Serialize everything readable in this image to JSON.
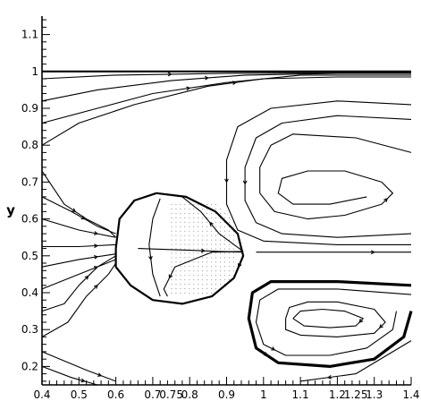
{
  "chart_data": {
    "type": "line",
    "title": "",
    "xlabel": "",
    "ylabel": "y",
    "xlim": [
      0.4,
      1.4
    ],
    "ylim": [
      0.15,
      1.15
    ],
    "x_ticks": [
      "0.4",
      "0.5",
      "0.6",
      "0.7",
      "0.75",
      "0.8",
      "0.9",
      "1",
      "1.1",
      "1.2",
      "1.25",
      "1.3",
      "1.4"
    ],
    "y_ticks": [
      "0.2",
      "0.3",
      "0.4",
      "0.5",
      "0.6",
      "0.7",
      "0.8",
      "0.9",
      "1",
      "1.1"
    ],
    "grid": false,
    "legend": "none",
    "series": [
      {
        "values": [
          [
            0.4,
            1.0
          ],
          [
            1.4,
            1.0
          ]
        ]
      },
      {
        "values": [
          [
            0.4,
            0.8
          ],
          [
            0.5,
            0.86
          ],
          [
            0.65,
            0.91
          ],
          [
            0.85,
            0.96
          ],
          [
            1.0,
            0.98
          ],
          [
            1.2,
            0.985
          ],
          [
            1.4,
            0.985
          ]
        ]
      },
      {
        "values": [
          [
            0.4,
            0.86
          ],
          [
            0.55,
            0.9
          ],
          [
            0.7,
            0.94
          ],
          [
            0.9,
            0.97
          ],
          [
            1.1,
            0.99
          ],
          [
            1.4,
            0.99
          ]
        ]
      },
      {
        "values": [
          [
            0.4,
            0.92
          ],
          [
            0.55,
            0.95
          ],
          [
            0.75,
            0.975
          ],
          [
            0.95,
            0.99
          ],
          [
            1.2,
            0.995
          ],
          [
            1.4,
            0.995
          ]
        ]
      },
      {
        "values": [
          [
            0.4,
            0.98
          ],
          [
            0.6,
            0.99
          ],
          [
            0.9,
            0.995
          ],
          [
            1.4,
            0.997
          ]
        ]
      },
      {
        "values": [
          [
            0.4,
            0.73
          ],
          [
            0.42,
            0.7
          ],
          [
            0.46,
            0.64
          ],
          [
            0.52,
            0.6
          ],
          [
            0.58,
            0.57
          ],
          [
            0.6,
            0.55
          ]
        ]
      },
      {
        "values": [
          [
            0.4,
            0.66
          ],
          [
            0.48,
            0.62
          ],
          [
            0.55,
            0.58
          ],
          [
            0.6,
            0.56
          ]
        ]
      },
      {
        "values": [
          [
            0.4,
            0.6
          ],
          [
            0.5,
            0.57
          ],
          [
            0.6,
            0.55
          ]
        ]
      },
      {
        "values": [
          [
            0.4,
            0.525
          ],
          [
            0.5,
            0.525
          ],
          [
            0.6,
            0.53
          ]
        ]
      },
      {
        "values": [
          [
            0.4,
            0.47
          ],
          [
            0.5,
            0.49
          ],
          [
            0.6,
            0.505
          ]
        ]
      },
      {
        "values": [
          [
            0.4,
            0.41
          ],
          [
            0.5,
            0.45
          ],
          [
            0.6,
            0.49
          ]
        ]
      },
      {
        "values": [
          [
            0.4,
            0.35
          ],
          [
            0.46,
            0.37
          ],
          [
            0.5,
            0.42
          ],
          [
            0.55,
            0.47
          ],
          [
            0.6,
            0.5
          ]
        ]
      },
      {
        "values": [
          [
            0.4,
            0.28
          ],
          [
            0.47,
            0.32
          ],
          [
            0.52,
            0.39
          ],
          [
            0.58,
            0.45
          ],
          [
            0.6,
            0.48
          ]
        ]
      },
      {
        "values": [
          [
            0.4,
            0.24
          ],
          [
            0.52,
            0.19
          ],
          [
            0.6,
            0.16
          ]
        ]
      },
      {
        "values": [
          [
            0.4,
            0.2
          ],
          [
            0.48,
            0.17
          ],
          [
            0.55,
            0.15
          ]
        ]
      },
      {
        "values": [
          [
            0.6,
            0.52
          ],
          [
            0.61,
            0.6
          ],
          [
            0.65,
            0.65
          ],
          [
            0.71,
            0.67
          ],
          [
            0.79,
            0.66
          ],
          [
            0.87,
            0.62
          ],
          [
            0.93,
            0.56
          ],
          [
            0.945,
            0.5
          ],
          [
            0.92,
            0.44
          ],
          [
            0.86,
            0.39
          ],
          [
            0.78,
            0.37
          ],
          [
            0.7,
            0.38
          ],
          [
            0.64,
            0.42
          ],
          [
            0.6,
            0.47
          ],
          [
            0.6,
            0.52
          ]
        ]
      },
      {
        "values": [
          [
            0.72,
            0.655
          ],
          [
            0.7,
            0.6
          ],
          [
            0.69,
            0.53
          ],
          [
            0.7,
            0.45
          ],
          [
            0.72,
            0.39
          ]
        ]
      },
      {
        "values": [
          [
            0.66,
            0.52
          ],
          [
            0.72,
            0.518
          ],
          [
            0.8,
            0.515
          ],
          [
            0.88,
            0.512
          ],
          [
            0.945,
            0.51
          ]
        ]
      },
      {
        "values": [
          [
            0.945,
            0.512
          ],
          [
            0.86,
            0.51
          ],
          [
            0.76,
            0.47
          ],
          [
            0.73,
            0.41
          ],
          [
            0.74,
            0.39
          ]
        ]
      },
      {
        "values": [
          [
            0.945,
            0.512
          ],
          [
            0.88,
            0.56
          ],
          [
            0.83,
            0.62
          ],
          [
            0.78,
            0.66
          ]
        ]
      },
      {
        "values": [
          [
            1.4,
            0.78
          ],
          [
            1.25,
            0.82
          ],
          [
            1.08,
            0.83
          ],
          [
            1.02,
            0.8
          ],
          [
            0.99,
            0.74
          ],
          [
            0.99,
            0.67
          ],
          [
            1.03,
            0.62
          ],
          [
            1.12,
            0.6
          ],
          [
            1.22,
            0.61
          ],
          [
            1.32,
            0.64
          ],
          [
            1.35,
            0.67
          ],
          [
            1.32,
            0.7
          ],
          [
            1.22,
            0.73
          ],
          [
            1.12,
            0.73
          ],
          [
            1.05,
            0.71
          ],
          [
            1.04,
            0.67
          ],
          [
            1.08,
            0.64
          ],
          [
            1.18,
            0.64
          ],
          [
            1.28,
            0.66
          ]
        ]
      },
      {
        "values": [
          [
            1.4,
            0.87
          ],
          [
            1.2,
            0.88
          ],
          [
            1.05,
            0.86
          ],
          [
            0.98,
            0.82
          ],
          [
            0.95,
            0.74
          ],
          [
            0.95,
            0.65
          ],
          [
            0.98,
            0.59
          ],
          [
            1.05,
            0.56
          ],
          [
            1.2,
            0.55
          ],
          [
            1.4,
            0.56
          ]
        ]
      },
      {
        "values": [
          [
            1.4,
            0.91
          ],
          [
            1.2,
            0.92
          ],
          [
            1.02,
            0.9
          ],
          [
            0.93,
            0.85
          ],
          [
            0.9,
            0.76
          ],
          [
            0.9,
            0.64
          ],
          [
            0.93,
            0.57
          ],
          [
            1.0,
            0.54
          ],
          [
            1.2,
            0.53
          ],
          [
            1.4,
            0.53
          ]
        ]
      },
      {
        "values": [
          [
            0.98,
            0.51
          ],
          [
            1.2,
            0.51
          ],
          [
            1.4,
            0.51
          ]
        ]
      },
      {
        "values": [
          [
            1.4,
            0.42
          ],
          [
            1.2,
            0.43
          ],
          [
            1.02,
            0.43
          ],
          [
            0.97,
            0.4
          ],
          [
            0.96,
            0.33
          ],
          [
            0.98,
            0.25
          ],
          [
            1.04,
            0.21
          ],
          [
            1.18,
            0.2
          ],
          [
            1.3,
            0.22
          ],
          [
            1.38,
            0.28
          ],
          [
            1.4,
            0.35
          ]
        ]
      },
      {
        "values": [
          [
            1.4,
            0.395
          ],
          [
            1.2,
            0.41
          ],
          [
            1.04,
            0.41
          ],
          [
            0.99,
            0.38
          ],
          [
            0.98,
            0.32
          ],
          [
            1.0,
            0.26
          ],
          [
            1.06,
            0.23
          ],
          [
            1.18,
            0.23
          ],
          [
            1.28,
            0.25
          ],
          [
            1.35,
            0.3
          ],
          [
            1.36,
            0.35
          ]
        ]
      },
      {
        "values": [
          [
            1.06,
            0.33
          ],
          [
            1.07,
            0.36
          ],
          [
            1.12,
            0.375
          ],
          [
            1.2,
            0.375
          ],
          [
            1.3,
            0.355
          ],
          [
            1.33,
            0.32
          ],
          [
            1.3,
            0.29
          ],
          [
            1.2,
            0.28
          ],
          [
            1.1,
            0.285
          ],
          [
            1.06,
            0.3
          ],
          [
            1.06,
            0.33
          ]
        ]
      },
      {
        "values": [
          [
            1.08,
            0.33
          ],
          [
            1.1,
            0.35
          ],
          [
            1.16,
            0.355
          ],
          [
            1.22,
            0.35
          ],
          [
            1.27,
            0.33
          ],
          [
            1.25,
            0.31
          ],
          [
            1.18,
            0.305
          ],
          [
            1.11,
            0.31
          ],
          [
            1.08,
            0.33
          ]
        ]
      },
      {
        "values": [
          [
            1.4,
            0.27
          ],
          [
            1.25,
            0.18
          ],
          [
            1.1,
            0.16
          ]
        ]
      }
    ]
  }
}
